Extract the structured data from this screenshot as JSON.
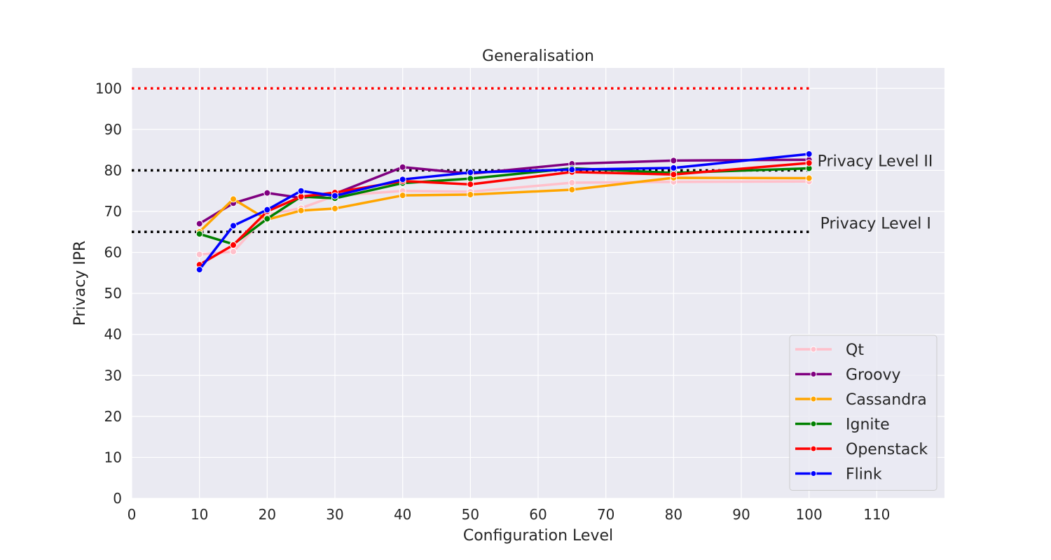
{
  "chart_data": {
    "type": "line",
    "title": "Generalisation",
    "xlabel": "Configuration Level",
    "ylabel": "Privacy IPR",
    "xlim": [
      0,
      120
    ],
    "ylim": [
      0,
      105
    ],
    "xticks": [
      0,
      10,
      20,
      30,
      40,
      50,
      60,
      70,
      80,
      90,
      100,
      110
    ],
    "yticks": [
      0,
      10,
      20,
      30,
      40,
      50,
      60,
      70,
      80,
      90,
      100
    ],
    "grid": true,
    "legend_position": "lower right",
    "series": [
      {
        "name": "Qt",
        "color": "#ffc0cb",
        "x": [
          10,
          15,
          20,
          25,
          30,
          40,
          50,
          65,
          80,
          100
        ],
        "y": [
          59.5,
          60.2,
          69.2,
          70.8,
          73.8,
          75.0,
          74.8,
          77.0,
          77.2,
          77.3
        ]
      },
      {
        "name": "Groovy",
        "color": "#800080",
        "x": [
          10,
          15,
          20,
          25,
          30,
          40,
          50,
          65,
          80,
          100
        ],
        "y": [
          67.0,
          72.0,
          74.5,
          73.3,
          74.3,
          80.8,
          79.2,
          81.6,
          82.4,
          82.6
        ]
      },
      {
        "name": "Cassandra",
        "color": "#ffa500",
        "x": [
          10,
          15,
          20,
          25,
          30,
          40,
          50,
          65,
          80,
          100
        ],
        "y": [
          65.0,
          73.0,
          68.0,
          70.2,
          70.7,
          73.9,
          74.1,
          75.3,
          78.2,
          78.1
        ]
      },
      {
        "name": "Ignite",
        "color": "#008000",
        "x": [
          10,
          15,
          20,
          25,
          30,
          40,
          50,
          65,
          80,
          100
        ],
        "y": [
          64.5,
          62.0,
          68.2,
          73.6,
          73.2,
          76.9,
          78.0,
          80.5,
          79.4,
          80.5
        ]
      },
      {
        "name": "Openstack",
        "color": "#ff0000",
        "x": [
          10,
          15,
          20,
          25,
          30,
          40,
          50,
          65,
          80,
          100
        ],
        "y": [
          57.0,
          61.8,
          70.0,
          73.6,
          74.6,
          77.4,
          76.6,
          79.6,
          79.0,
          81.8
        ]
      },
      {
        "name": "Flink",
        "color": "#0000ff",
        "x": [
          10,
          15,
          20,
          25,
          30,
          40,
          50,
          65,
          80,
          100
        ],
        "y": [
          55.8,
          66.5,
          70.4,
          75.0,
          73.8,
          77.8,
          79.5,
          80.2,
          80.6,
          84.0
        ]
      }
    ],
    "reference_lines": [
      {
        "y": 100,
        "x_range": [
          0,
          100
        ],
        "color": "#ff0000",
        "style": "dotted",
        "label": ""
      },
      {
        "y": 80,
        "x_range": [
          0,
          100
        ],
        "color": "#000000",
        "style": "dotted",
        "label": "Privacy Level II"
      },
      {
        "y": 65,
        "x_range": [
          0,
          100
        ],
        "color": "#000000",
        "style": "dotted",
        "label": "Privacy Level I"
      }
    ],
    "colors": {
      "plot_background": "#eaeaf2",
      "grid": "#ffffff",
      "text": "#262626"
    }
  }
}
